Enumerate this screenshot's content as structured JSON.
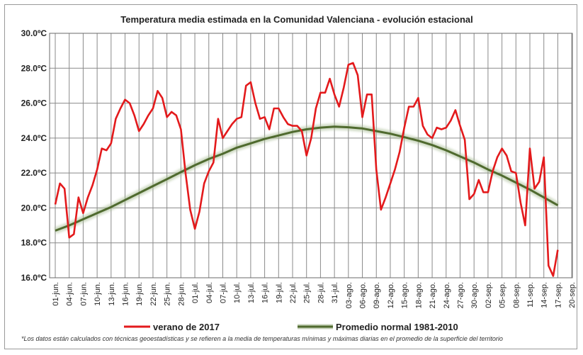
{
  "chart_data": {
    "type": "line",
    "title": "Temperatura media estimada en la Comunidad Valenciana - evolución estacional",
    "xlabel": "",
    "ylabel": "",
    "ylim": [
      16.0,
      30.0
    ],
    "yticks": [
      "16.0ºC",
      "18.0ºC",
      "20.0ºC",
      "22.0ºC",
      "24.0ºC",
      "26.0ºC",
      "28.0ºC",
      "30.0ºC"
    ],
    "x_ticks": [
      "01-jun.",
      "04-jun.",
      "07-jun.",
      "10-jun.",
      "13-jun.",
      "16-jun.",
      "19-jun.",
      "22-jun.",
      "25-jun.",
      "28-jun.",
      "01-jul.",
      "04-jul.",
      "07-jul.",
      "10-jul.",
      "13-jul.",
      "16-jul.",
      "19-jul.",
      "22-jul.",
      "25-jul.",
      "28-jul.",
      "31-jul.",
      "03-ago.",
      "06-ago.",
      "09-ago.",
      "12-ago.",
      "15-ago.",
      "18-ago.",
      "21-ago.",
      "24-ago.",
      "27-ago.",
      "30-ago.",
      "02-sep.",
      "05-sep.",
      "08-sep.",
      "11-sep.",
      "14-sep.",
      "17-sep.",
      "20-sep."
    ],
    "grid": true,
    "legend_position": "bottom",
    "series": [
      {
        "name": "verano de 2017",
        "color": "#e31a1c",
        "values": [
          20.2,
          21.4,
          21.1,
          18.3,
          18.5,
          20.6,
          19.7,
          20.6,
          21.3,
          22.2,
          23.4,
          23.3,
          23.7,
          25.1,
          25.7,
          26.2,
          26.0,
          25.3,
          24.4,
          24.8,
          25.3,
          25.7,
          26.7,
          26.3,
          25.2,
          25.5,
          25.3,
          24.5,
          22.0,
          19.9,
          18.8,
          19.8,
          21.4,
          22.1,
          22.6,
          25.1,
          24.0,
          24.4,
          24.8,
          25.1,
          25.2,
          27.0,
          27.2,
          26.0,
          25.1,
          25.2,
          24.5,
          25.7,
          25.7,
          25.2,
          24.8,
          24.7,
          24.7,
          24.4,
          23.0,
          24.0,
          25.7,
          26.6,
          26.6,
          27.4,
          26.5,
          25.8,
          26.9,
          28.2,
          28.3,
          27.6,
          25.2,
          26.5,
          26.5,
          22.2,
          19.9,
          20.6,
          21.4,
          22.2,
          23.2,
          24.6,
          25.8,
          25.8,
          26.3,
          24.7,
          24.2,
          24.0,
          24.6,
          24.5,
          24.6,
          25.0,
          25.6,
          24.7,
          23.9,
          20.5,
          20.8,
          21.6,
          20.9,
          20.9,
          22.1,
          22.9,
          23.4,
          23.0,
          22.1,
          22.0,
          20.3,
          19.0,
          23.4,
          21.1,
          21.5,
          22.9,
          16.7,
          16.1,
          17.6
        ],
        "start_label": "01-jun."
      },
      {
        "name": "Promedio normal 1981-2010",
        "color": "#4f6a2e",
        "values": [
          18.7,
          19.0,
          19.35,
          19.7,
          20.05,
          20.45,
          20.85,
          21.25,
          21.65,
          22.05,
          22.45,
          22.8,
          23.1,
          23.45,
          23.7,
          23.95,
          24.15,
          24.35,
          24.5,
          24.6,
          24.65,
          24.62,
          24.55,
          24.4,
          24.25,
          24.05,
          23.85,
          23.6,
          23.3,
          22.95,
          22.6,
          22.2,
          21.85,
          21.45,
          21.05,
          20.6,
          20.15
        ],
        "start_label": "01-jun."
      }
    ],
    "footnote": "*Los datos están calculados con técnicas geoestadísticas y se refieren a la media de temperaturas mínimas y máximas diarias en el promedio de la superficie del territorio"
  }
}
